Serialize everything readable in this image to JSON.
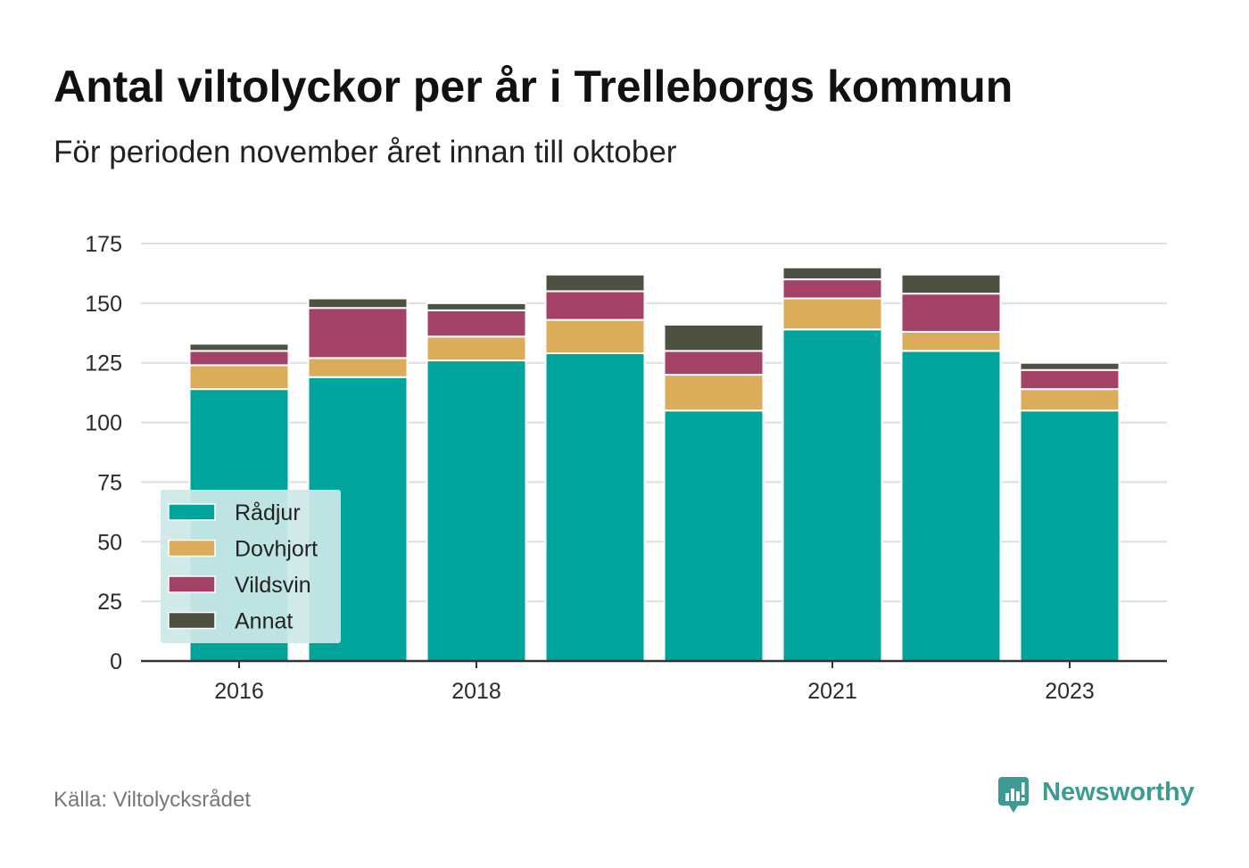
{
  "chart_data": {
    "type": "bar",
    "stacked": true,
    "title": "Antal viltolyckor per år i Trelleborgs kommun",
    "subtitle": "För perioden november året innan till oktober",
    "xlabel": "",
    "ylabel": "",
    "x": [
      2016,
      2017,
      2018,
      2019,
      2020,
      2021,
      2022,
      2023
    ],
    "xtick_labels": [
      "2016",
      "2018",
      "2021",
      "2023"
    ],
    "yticks": [
      "0",
      "25",
      "50",
      "75",
      "100",
      "125",
      "150",
      "175"
    ],
    "ylim": [
      0,
      175
    ],
    "grid": true,
    "legend": "bottom-left",
    "series": [
      {
        "name": "Rådjur",
        "color": "#00a49a",
        "values": [
          114,
          119,
          126,
          129,
          105,
          139,
          130,
          105
        ]
      },
      {
        "name": "Dovhjort",
        "color": "#dbad5b",
        "values": [
          10,
          8,
          10,
          14,
          15,
          13,
          8,
          9
        ]
      },
      {
        "name": "Vildsvin",
        "color": "#a34266",
        "values": [
          6,
          21,
          11,
          12,
          10,
          8,
          16,
          8
        ]
      },
      {
        "name": "Annat",
        "color": "#4e5042",
        "values": [
          3,
          4,
          3,
          7,
          11,
          5,
          8,
          3
        ]
      }
    ]
  },
  "footer": {
    "source": "Källa: Viltolycksrådet",
    "logo_text": "Newsworthy",
    "logo_color": "#3d9b94"
  }
}
